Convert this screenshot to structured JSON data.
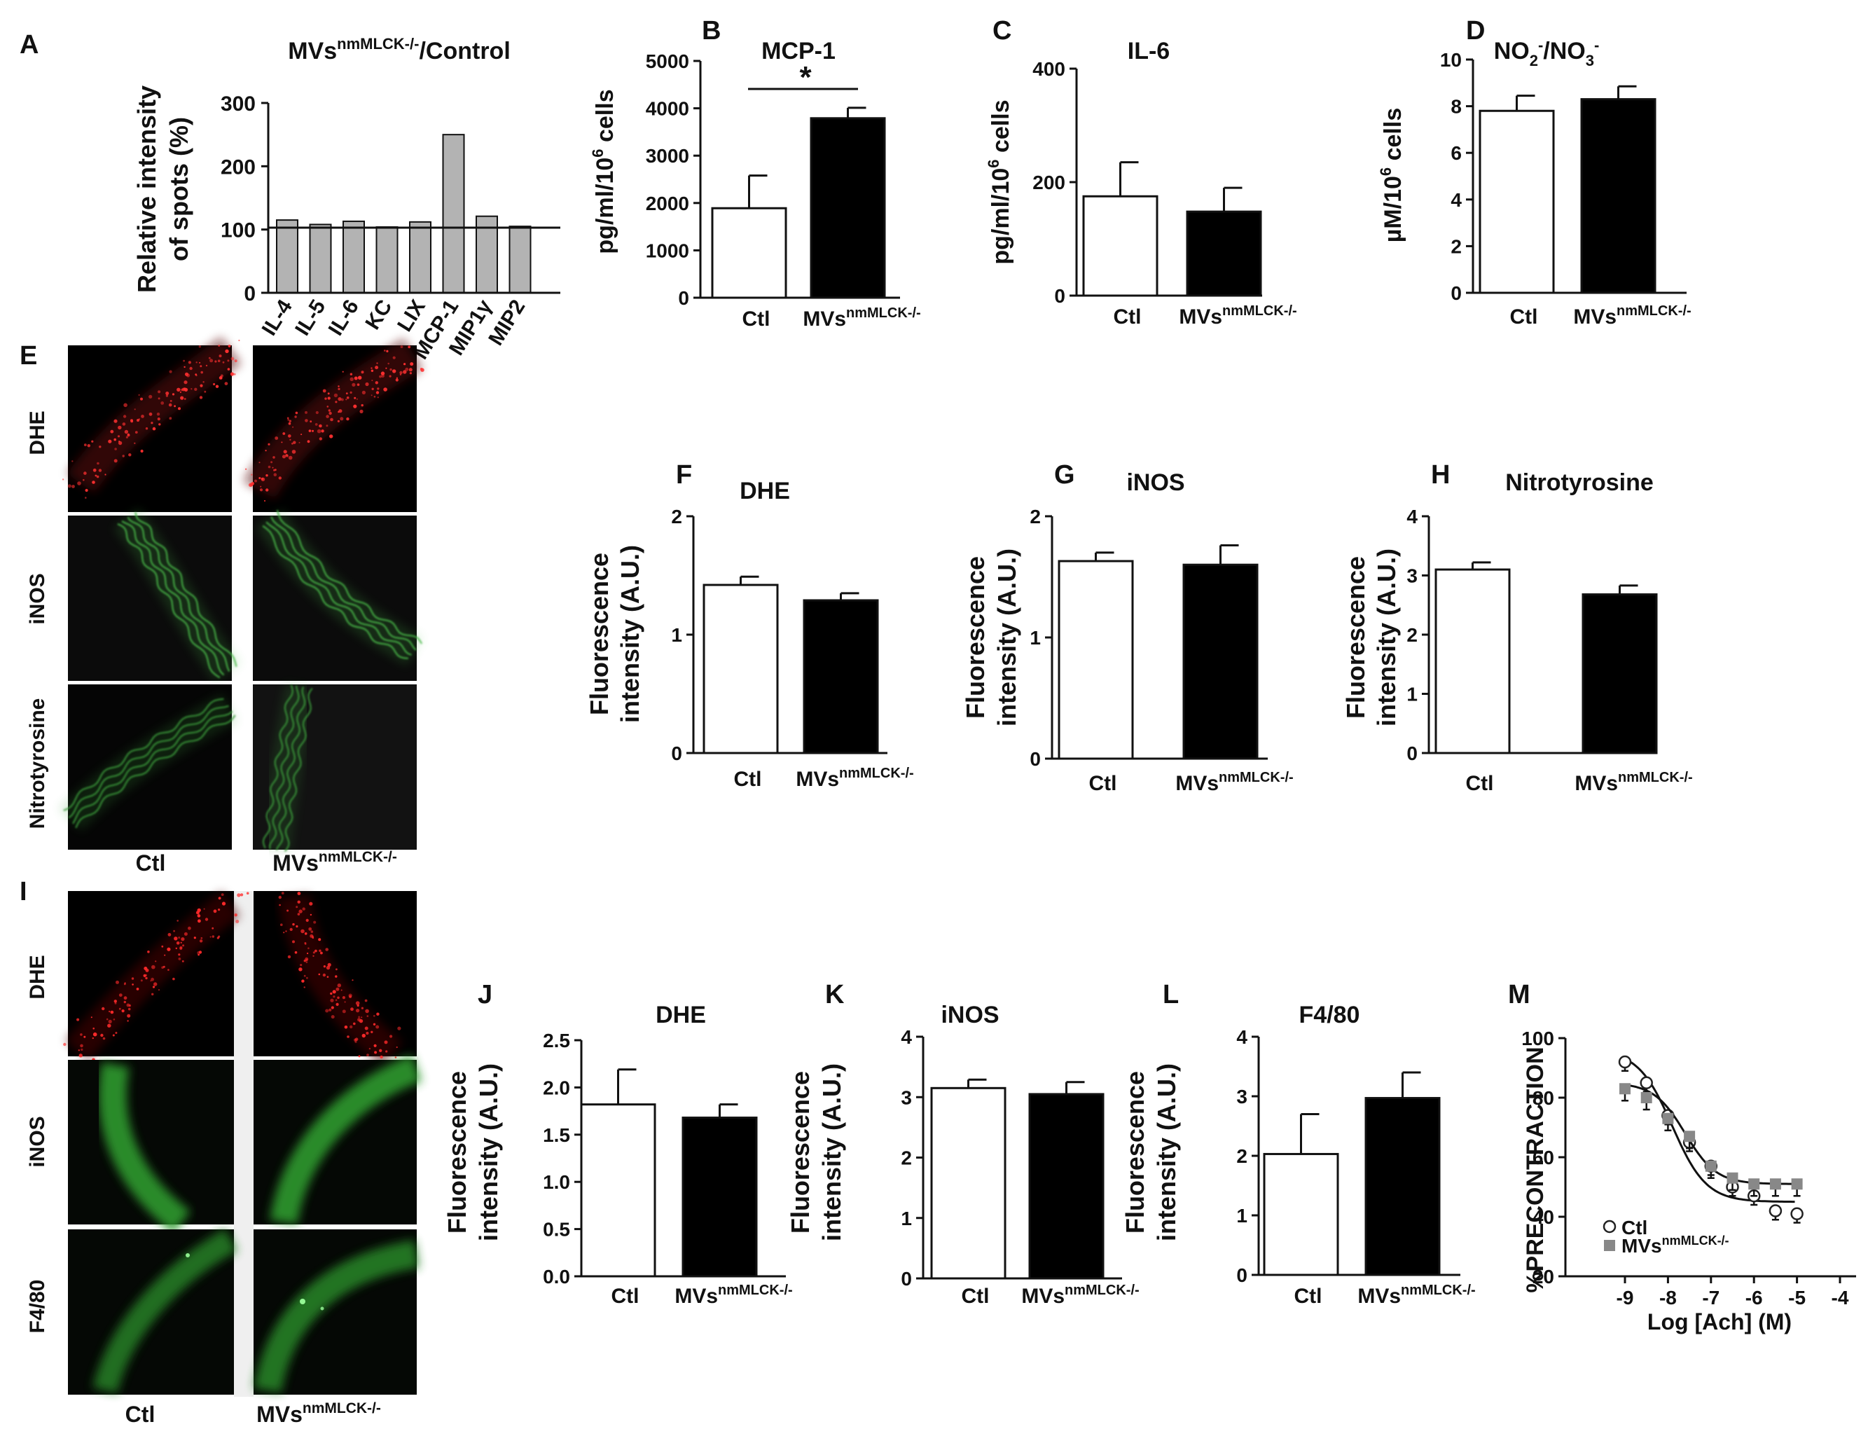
{
  "panel_letters": {
    "A": "A",
    "B": "B",
    "C": "C",
    "D": "D",
    "E": "E",
    "F": "F",
    "G": "G",
    "H": "H",
    "I": "I",
    "J": "J",
    "K": "K",
    "L": "L",
    "M": "M"
  },
  "mvs_label": "MVs",
  "mvs_sup": "nmMLCK-/-",
  "ctl_label": "Ctl",
  "chart_data": [
    {
      "panel": "A",
      "type": "bar",
      "title_main": "MVs",
      "title_sup": "nmMLCK-/-",
      "title_rest": "/Control",
      "ylabel_line1": "Relative intensity",
      "ylabel_line2": "of spots (%)",
      "categories": [
        "IL-4",
        "IL-5",
        "IL-6",
        "KC",
        "LIX",
        "MCP-1",
        "MIP1γ",
        "MIP2"
      ],
      "values": [
        115,
        108,
        113,
        104,
        112,
        250,
        121,
        105
      ],
      "ylim": [
        0,
        300
      ],
      "yticks": [
        0,
        100,
        200,
        300
      ],
      "reference_line": 103,
      "bar_color": "#b3b3b3"
    },
    {
      "panel": "B",
      "type": "bar",
      "title": "MCP-1",
      "ylabel": "pg/ml/10",
      "ylabel_sup": "6",
      "ylabel_rest": " cells",
      "categories": [
        "Ctl",
        "MVsnmMLCK-/-"
      ],
      "values": [
        1890,
        3790
      ],
      "errors": [
        690,
        220
      ],
      "ylim": [
        0,
        5000
      ],
      "yticks": [
        0,
        1000,
        2000,
        3000,
        4000,
        5000
      ],
      "significance": "*"
    },
    {
      "panel": "C",
      "type": "bar",
      "title": "IL-6",
      "ylabel": "pg/ml/10",
      "ylabel_sup": "6",
      "ylabel_rest": " cells",
      "categories": [
        "Ctl",
        "MVsnmMLCK-/-"
      ],
      "values": [
        175,
        148
      ],
      "errors": [
        60,
        42
      ],
      "ylim": [
        0,
        400
      ],
      "yticks": [
        0,
        200,
        400
      ]
    },
    {
      "panel": "D",
      "type": "bar",
      "title_parts": [
        "NO",
        "2",
        "-",
        "/NO",
        "3",
        "-"
      ],
      "ylabel": "µM/10",
      "ylabel_sup": "6",
      "ylabel_rest": " cells",
      "categories": [
        "Ctl",
        "MVsnmMLCK-/-"
      ],
      "values": [
        7.8,
        8.3
      ],
      "errors": [
        0.65,
        0.55
      ],
      "ylim": [
        0,
        10
      ],
      "yticks": [
        0,
        2,
        4,
        6,
        8,
        10
      ]
    },
    {
      "panel": "F",
      "type": "bar",
      "title": "DHE",
      "ylabel_line1": "Fluorescence",
      "ylabel_line2": "intensity (A.U.)",
      "categories": [
        "Ctl",
        "MVsnmMLCK-/-"
      ],
      "values": [
        1.42,
        1.29
      ],
      "errors": [
        0.07,
        0.06
      ],
      "ylim": [
        0,
        2
      ],
      "yticks": [
        0,
        1,
        2
      ]
    },
    {
      "panel": "G",
      "type": "bar",
      "title": "iNOS",
      "ylabel_line1": "Fluorescence",
      "ylabel_line2": "intensity (A.U.)",
      "categories": [
        "Ctl",
        "MVsnmMLCK-/-"
      ],
      "values": [
        1.63,
        1.6
      ],
      "errors": [
        0.07,
        0.16
      ],
      "ylim": [
        0,
        2
      ],
      "yticks": [
        0,
        1,
        2
      ]
    },
    {
      "panel": "H",
      "type": "bar",
      "title": "Nitrotyrosine",
      "ylabel_line1": "Fluorescence",
      "ylabel_line2": "intensity (A.U.)",
      "categories": [
        "Ctl",
        "MVsnmMLCK-/-"
      ],
      "values": [
        3.1,
        2.68
      ],
      "errors": [
        0.12,
        0.15
      ],
      "ylim": [
        0,
        4
      ],
      "yticks": [
        0,
        1,
        2,
        3,
        4
      ]
    },
    {
      "panel": "J",
      "type": "bar",
      "title": "DHE",
      "ylabel_line1": "Fluorescence",
      "ylabel_line2": "intensity (A.U.)",
      "categories": [
        "Ctl",
        "MVsnmMLCK-/-"
      ],
      "values": [
        1.82,
        1.68
      ],
      "errors": [
        0.37,
        0.14
      ],
      "ylim": [
        0,
        2.5
      ],
      "yticks": [
        0.0,
        0.5,
        1.0,
        1.5,
        2.0,
        2.5
      ],
      "ytick_labels": [
        "0.0",
        "0.5",
        "1.0",
        "1.5",
        "2.0",
        "2.5"
      ]
    },
    {
      "panel": "K",
      "type": "bar",
      "title": "iNOS",
      "ylabel_line1": "Fluorescence",
      "ylabel_line2": "intensity (A.U.)",
      "categories": [
        "Ctl",
        "MVsnmMLCK-/-"
      ],
      "values": [
        3.15,
        3.05
      ],
      "errors": [
        0.14,
        0.2
      ],
      "ylim": [
        0,
        4
      ],
      "yticks": [
        0,
        1,
        2,
        3,
        4
      ]
    },
    {
      "panel": "L",
      "type": "bar",
      "title": "F4/80",
      "ylabel_line1": "Fluorescence",
      "ylabel_line2": "intensity (A.U.)",
      "categories": [
        "Ctl",
        "MVsnmMLCK-/-"
      ],
      "values": [
        2.03,
        2.97
      ],
      "errors": [
        0.67,
        0.43
      ],
      "ylim": [
        0,
        4
      ],
      "yticks": [
        0,
        1,
        2,
        3,
        4
      ]
    },
    {
      "panel": "M",
      "type": "scatter",
      "ylabel": "%PRECONTRACTION",
      "xlabel": "Log [Ach] (M)",
      "xlim": [
        -9.5,
        -4
      ],
      "ylim": [
        20,
        100
      ],
      "xticks": [
        -9,
        -8,
        -7,
        -6,
        -5,
        -4
      ],
      "yticks": [
        20,
        40,
        60,
        80,
        100
      ],
      "series": [
        {
          "name": "Ctl",
          "marker": "circle-open",
          "x": [
            -9,
            -8.5,
            -8,
            -7.5,
            -7,
            -6.5,
            -6,
            -5.5,
            -5
          ],
          "y": [
            92,
            85,
            74,
            65,
            57,
            50,
            47,
            42,
            41
          ],
          "err": [
            3,
            3,
            3,
            3,
            3,
            3,
            3,
            3,
            3
          ],
          "fit": {
            "top": 96,
            "bottom": 45,
            "logEC50": -7.9,
            "hill": 1.1
          }
        },
        {
          "name": "MVsnmMLCK-/-",
          "name_main": "MVs",
          "name_sup": "nmMLCK-/-",
          "marker": "square-filled",
          "x": [
            -9,
            -8.5,
            -8,
            -7.5,
            -7,
            -6.5,
            -6,
            -5.5,
            -5
          ],
          "y": [
            83,
            80,
            73,
            67,
            57,
            53,
            51,
            51,
            51
          ],
          "err": [
            4,
            4,
            4,
            4,
            4,
            4,
            4,
            4,
            4
          ],
          "fit": {
            "top": 85,
            "bottom": 51,
            "logEC50": -7.6,
            "hill": 1.2
          }
        }
      ]
    }
  ],
  "micrographs": {
    "panel_E": {
      "row_labels": [
        "DHE",
        "iNOS",
        "Nitrotyrosine"
      ],
      "col_labels": [
        "Ctl",
        "MVsnmMLCK-/-"
      ]
    },
    "panel_I": {
      "row_labels": [
        "DHE",
        "iNOS",
        "F4/80"
      ],
      "col_labels": [
        "Ctl",
        "MVsnmMLCK-/-"
      ]
    }
  }
}
